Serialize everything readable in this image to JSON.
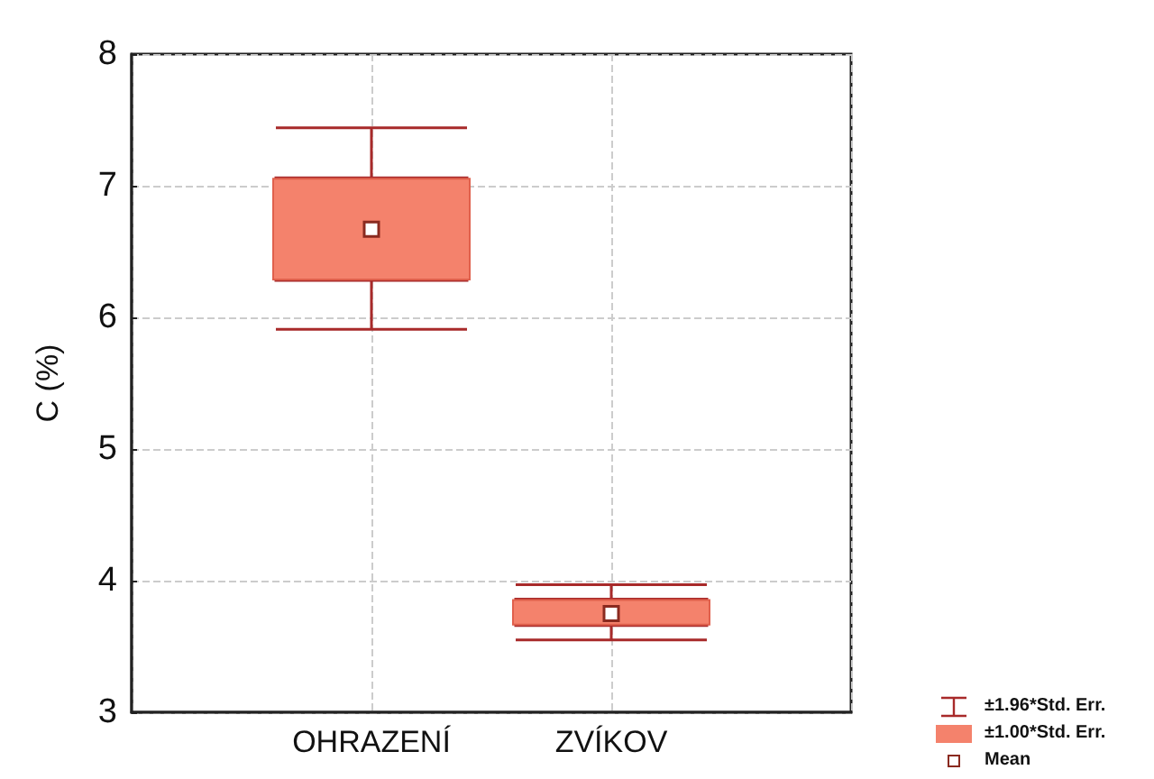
{
  "chart_data": {
    "type": "box",
    "ylabel": "C (%)",
    "categories": [
      "OHRAZENÍ",
      "ZVÍKOV"
    ],
    "ylim": [
      3,
      8
    ],
    "yticks": [
      3,
      4,
      5,
      6,
      7,
      8
    ],
    "grid": true,
    "legend": "bottom right",
    "series": [
      {
        "name": "±1.96*Std. Err.",
        "color": "#a82a2a",
        "boxes": [
          {
            "low": 5.91,
            "q1": 6.28,
            "median": 6.67,
            "q3": 7.06,
            "high": 7.44
          },
          {
            "low": 3.55,
            "q1": 3.66,
            "median": 3.75,
            "q3": 3.86,
            "high": 3.97
          }
        ]
      },
      {
        "name": "±1.00*Std. Err.",
        "type": "bar",
        "color": "#f4826c",
        "base": [
          6.28,
          3.66
        ],
        "values": [
          0.78,
          0.2
        ]
      },
      {
        "name": "Mean",
        "type": "scatter",
        "color": "#8a2a20",
        "marker": "square",
        "values": [
          6.67,
          3.75
        ]
      }
    ]
  }
}
